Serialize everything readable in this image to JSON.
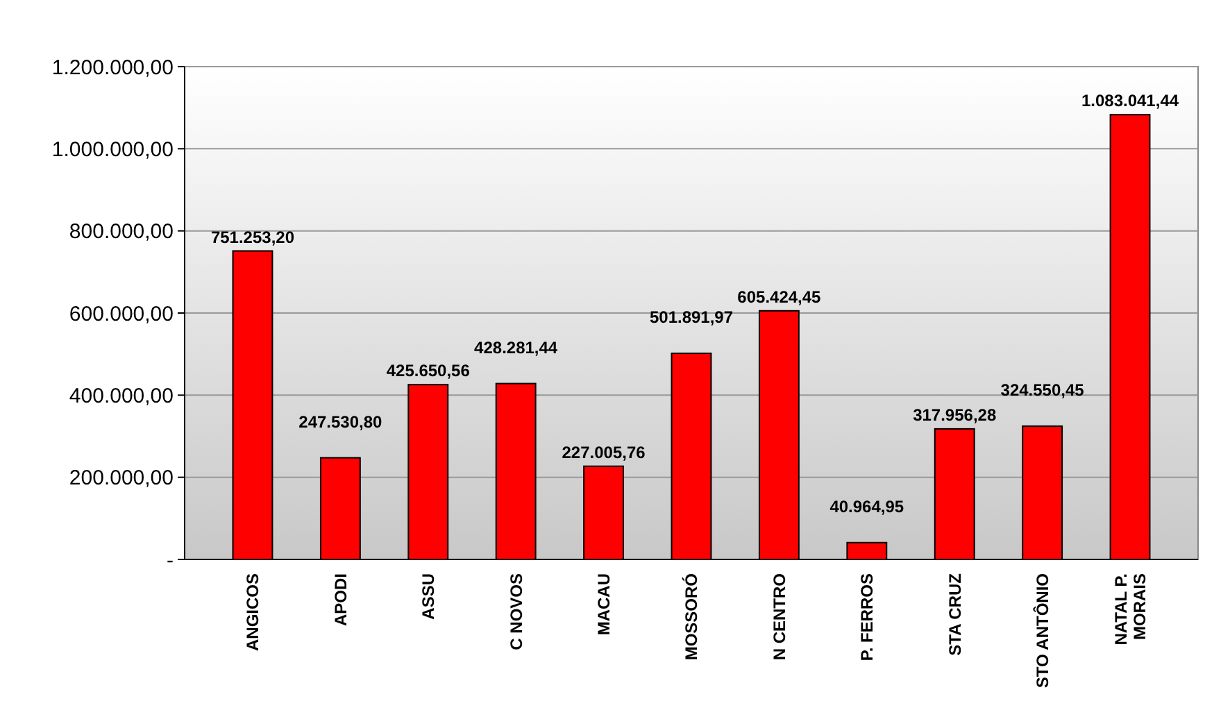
{
  "chart_data": {
    "type": "bar",
    "categories": [
      "ANGICOS",
      "APODI",
      "ASSU",
      "C NOVOS",
      "MACAU",
      "MOSSORÓ",
      "N CENTRO",
      "P. FERROS",
      "STA CRUZ",
      "STO ANTÔNIO",
      "NATAL P. MORAIS"
    ],
    "values": [
      751253.2,
      247530.8,
      425650.56,
      428281.44,
      227005.76,
      501891.97,
      605424.45,
      40964.95,
      317956.28,
      324550.45,
      1083041.44
    ],
    "value_labels": [
      "751.253,20",
      "247.530,80",
      "425.650,56",
      "428.281,44",
      "227.005,76",
      "501.891,97",
      "605.424,45",
      "40.964,95",
      "317.956,28",
      "324.550,45",
      "1.083.041,44"
    ],
    "color": "#ff0000",
    "ylim": [
      0,
      1200000
    ],
    "yticks": [
      {
        "value": 0,
        "label": "-"
      },
      {
        "value": 200000,
        "label": "200.000,00"
      },
      {
        "value": 400000,
        "label": "400.000,00"
      },
      {
        "value": 600000,
        "label": "600.000,00"
      },
      {
        "value": 800000,
        "label": "800.000,00"
      },
      {
        "value": 1000000,
        "label": "1.000.000,00"
      },
      {
        "value": 1200000,
        "label": "1.200.000,00"
      }
    ],
    "grid": "y"
  }
}
